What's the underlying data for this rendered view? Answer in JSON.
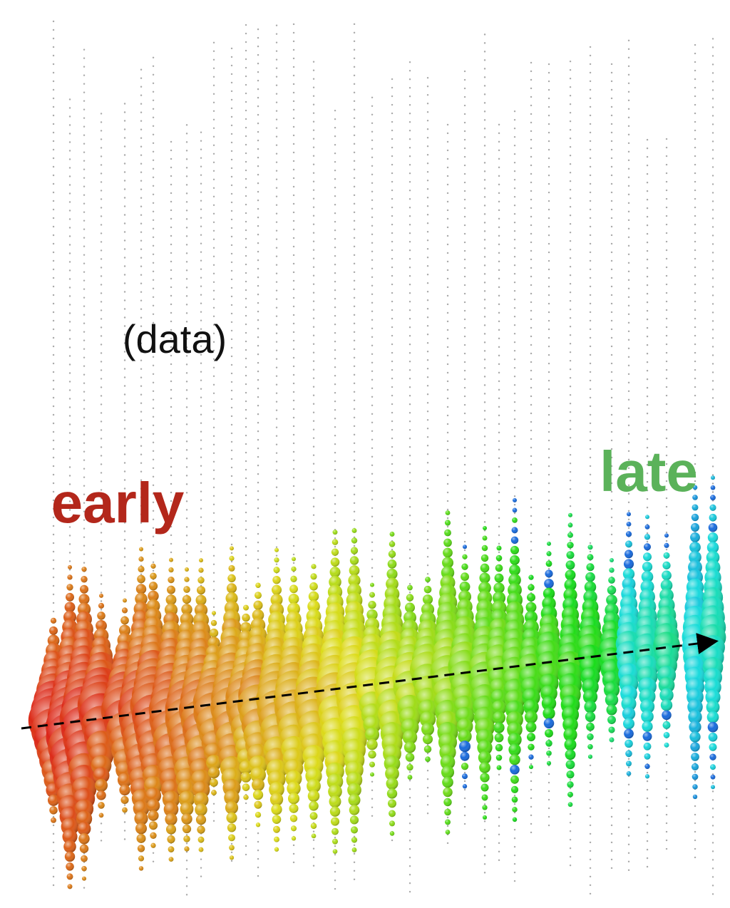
{
  "labels": {
    "data": "(data)",
    "early": "early",
    "late": "late"
  }
}
